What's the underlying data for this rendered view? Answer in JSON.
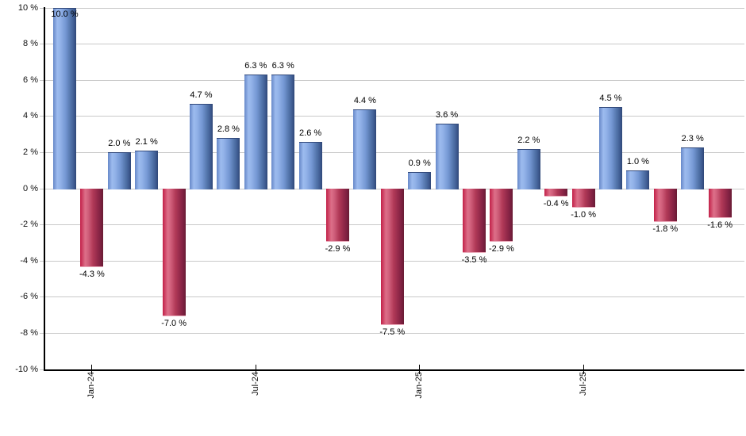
{
  "chart_data": {
    "type": "bar",
    "title": "",
    "xlabel": "",
    "ylabel": "",
    "ylim": [
      -10,
      10
    ],
    "grid": true,
    "legend": false,
    "values": [
      10.0,
      -4.3,
      2.0,
      2.1,
      -7.0,
      4.7,
      2.8,
      6.3,
      6.3,
      2.6,
      -2.9,
      4.4,
      -7.5,
      0.9,
      3.6,
      -3.5,
      -2.9,
      2.2,
      -0.4,
      -1.0,
      4.5,
      1.0,
      -1.8,
      2.3,
      -1.6
    ],
    "bar_labels": [
      "10.0 %",
      "-4.3 %",
      "2.0 %",
      "2.1 %",
      "-7.0 %",
      "4.7 %",
      "2.8 %",
      "6.3 %",
      "6.3 %",
      "2.6 %",
      "-2.9 %",
      "4.4 %",
      "-7.5 %",
      "0.9 %",
      "3.6 %",
      "-3.5 %",
      "-2.9 %",
      "2.2 %",
      "-0.4 %",
      "-1.0 %",
      "4.5 %",
      "1.0 %",
      "-1.8 %",
      "2.3 %",
      "-1.6 %"
    ],
    "x_tick_labels": [
      {
        "label": "Jan-24",
        "bar_index": 1
      },
      {
        "label": "Jul-24",
        "bar_index": 7
      },
      {
        "label": "Jan-25",
        "bar_index": 13
      },
      {
        "label": "Jul-25",
        "bar_index": 19
      }
    ],
    "y_tick_labels": [
      "10 %",
      "8 %",
      "6 %",
      "4 %",
      "2 %",
      "0 %",
      "-2 %",
      "-4 %",
      "-6 %",
      "-8 %",
      "-10 %"
    ],
    "y_tick_values": [
      10,
      8,
      6,
      4,
      2,
      0,
      -2,
      -4,
      -6,
      -8,
      -10
    ],
    "colors": {
      "positive_bar": "#7da1e0",
      "negative_bar": "#c23a5c",
      "gridline": "#c9c9c9",
      "axis": "#000000",
      "label_text": "#000000"
    }
  }
}
